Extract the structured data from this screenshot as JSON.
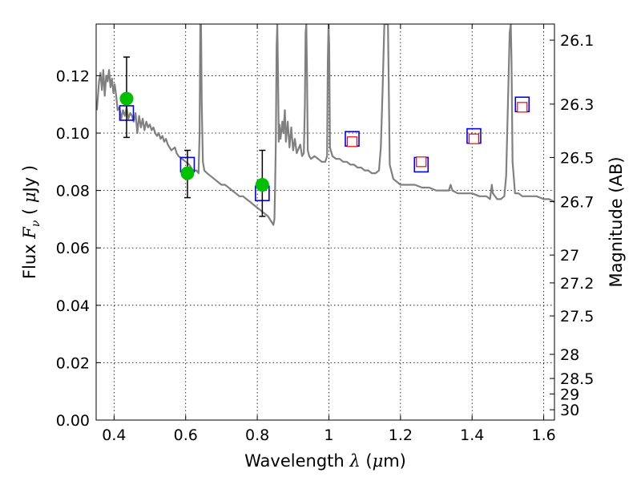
{
  "chart_data": {
    "type": "scatter",
    "title": "",
    "xlabel_prefix": "Wavelength ",
    "xlabel_symbol": "λ",
    "xlabel_unit_open": " (",
    "xlabel_unit_mu": "μ",
    "xlabel_unit_rest": "m)",
    "ylabel_prefix": "Flux  ",
    "ylabel_symbol": "F",
    "ylabel_sub": "ν",
    "ylabel_unit_open": "  ( ",
    "ylabel_unit_mu": "μ",
    "ylabel_unit_rest": "Jy )",
    "y2label": "Magnitude (AB)",
    "xlim": [
      0.35,
      1.63
    ],
    "ylim": [
      0.0,
      0.138
    ],
    "grid": true,
    "x_ticks": [
      {
        "value": 0.4,
        "label": "0.4"
      },
      {
        "value": 0.6,
        "label": "0.6"
      },
      {
        "value": 0.8,
        "label": "0.8"
      },
      {
        "value": 1.0,
        "label": "1"
      },
      {
        "value": 1.2,
        "label": "1.2"
      },
      {
        "value": 1.4,
        "label": "1.4"
      },
      {
        "value": 1.6,
        "label": "1.6"
      }
    ],
    "y_ticks": [
      {
        "value": 0.0,
        "label": "0.00"
      },
      {
        "value": 0.02,
        "label": "0.02"
      },
      {
        "value": 0.04,
        "label": "0.04"
      },
      {
        "value": 0.06,
        "label": "0.06"
      },
      {
        "value": 0.08,
        "label": "0.08"
      },
      {
        "value": 0.1,
        "label": "0.10"
      },
      {
        "value": 0.12,
        "label": "0.12"
      }
    ],
    "mag_ticks": [
      {
        "value": 0.1324,
        "label": "26.1"
      },
      {
        "value": 0.1101,
        "label": "26.3"
      },
      {
        "value": 0.0915,
        "label": "26.5"
      },
      {
        "value": 0.0761,
        "label": "26.7"
      },
      {
        "value": 0.0575,
        "label": "27"
      },
      {
        "value": 0.0478,
        "label": "27.2"
      },
      {
        "value": 0.0363,
        "label": "27.5"
      },
      {
        "value": 0.0229,
        "label": "28"
      },
      {
        "value": 0.0145,
        "label": "28.5"
      },
      {
        "value": 0.0091,
        "label": "29"
      },
      {
        "value": 0.0036,
        "label": "30"
      }
    ],
    "series": [
      {
        "name": "model-spectrum",
        "kind": "line",
        "color": "#808080",
        "points": [
          [
            0.352,
            0.108
          ],
          [
            0.358,
            0.118
          ],
          [
            0.362,
            0.121
          ],
          [
            0.366,
            0.115
          ],
          [
            0.37,
            0.122
          ],
          [
            0.374,
            0.113
          ],
          [
            0.378,
            0.12
          ],
          [
            0.382,
            0.118
          ],
          [
            0.386,
            0.122
          ],
          [
            0.39,
            0.116
          ],
          [
            0.394,
            0.119
          ],
          [
            0.398,
            0.114
          ],
          [
            0.402,
            0.117
          ],
          [
            0.406,
            0.113
          ],
          [
            0.41,
            0.108
          ],
          [
            0.415,
            0.109
          ],
          [
            0.42,
            0.105
          ],
          [
            0.425,
            0.108
          ],
          [
            0.43,
            0.106
          ],
          [
            0.435,
            0.109
          ],
          [
            0.44,
            0.105
          ],
          [
            0.445,
            0.107
          ],
          [
            0.45,
            0.106
          ],
          [
            0.455,
            0.104
          ],
          [
            0.46,
            0.107
          ],
          [
            0.465,
            0.1
          ],
          [
            0.47,
            0.106
          ],
          [
            0.475,
            0.102
          ],
          [
            0.48,
            0.105
          ],
          [
            0.485,
            0.101
          ],
          [
            0.49,
            0.104
          ],
          [
            0.495,
            0.102
          ],
          [
            0.5,
            0.103
          ],
          [
            0.505,
            0.101
          ],
          [
            0.51,
            0.102
          ],
          [
            0.515,
            0.1
          ],
          [
            0.52,
            0.099
          ],
          [
            0.525,
            0.1
          ],
          [
            0.53,
            0.098
          ],
          [
            0.535,
            0.099
          ],
          [
            0.54,
            0.097
          ],
          [
            0.545,
            0.098
          ],
          [
            0.55,
            0.096
          ],
          [
            0.56,
            0.094
          ],
          [
            0.57,
            0.095
          ],
          [
            0.575,
            0.093
          ],
          [
            0.58,
            0.092
          ],
          [
            0.59,
            0.091
          ],
          [
            0.6,
            0.09
          ],
          [
            0.61,
            0.089
          ],
          [
            0.62,
            0.087
          ],
          [
            0.63,
            0.087
          ],
          [
            0.636,
            0.086
          ],
          [
            0.639,
            0.1
          ],
          [
            0.641,
            0.138
          ],
          [
            0.643,
            0.138
          ],
          [
            0.645,
            0.11
          ],
          [
            0.648,
            0.09
          ],
          [
            0.652,
            0.087
          ],
          [
            0.66,
            0.086
          ],
          [
            0.67,
            0.085
          ],
          [
            0.68,
            0.084
          ],
          [
            0.69,
            0.083
          ],
          [
            0.7,
            0.082
          ],
          [
            0.71,
            0.082
          ],
          [
            0.72,
            0.081
          ],
          [
            0.73,
            0.08
          ],
          [
            0.74,
            0.079
          ],
          [
            0.75,
            0.078
          ],
          [
            0.76,
            0.078
          ],
          [
            0.77,
            0.077
          ],
          [
            0.78,
            0.076
          ],
          [
            0.79,
            0.075
          ],
          [
            0.8,
            0.074
          ],
          [
            0.81,
            0.073
          ],
          [
            0.82,
            0.072
          ],
          [
            0.83,
            0.071
          ],
          [
            0.84,
            0.069
          ],
          [
            0.845,
            0.068
          ],
          [
            0.848,
            0.07
          ],
          [
            0.85,
            0.082
          ],
          [
            0.852,
            0.098
          ],
          [
            0.854,
            0.13
          ],
          [
            0.856,
            0.138
          ],
          [
            0.858,
            0.12
          ],
          [
            0.86,
            0.097
          ],
          [
            0.862,
            0.103
          ],
          [
            0.865,
            0.098
          ],
          [
            0.87,
            0.104
          ],
          [
            0.873,
            0.1
          ],
          [
            0.877,
            0.108
          ],
          [
            0.88,
            0.097
          ],
          [
            0.885,
            0.104
          ],
          [
            0.89,
            0.095
          ],
          [
            0.895,
            0.102
          ],
          [
            0.9,
            0.094
          ],
          [
            0.905,
            0.098
          ],
          [
            0.91,
            0.093
          ],
          [
            0.92,
            0.096
          ],
          [
            0.925,
            0.092
          ],
          [
            0.93,
            0.093
          ],
          [
            0.933,
            0.11
          ],
          [
            0.935,
            0.135
          ],
          [
            0.937,
            0.138
          ],
          [
            0.939,
            0.12
          ],
          [
            0.941,
            0.094
          ],
          [
            0.945,
            0.092
          ],
          [
            0.95,
            0.091
          ],
          [
            0.96,
            0.092
          ],
          [
            0.97,
            0.091
          ],
          [
            0.98,
            0.09
          ],
          [
            0.99,
            0.09
          ],
          [
            0.995,
            0.092
          ],
          [
            0.997,
            0.125
          ],
          [
            0.999,
            0.138
          ],
          [
            1.001,
            0.13
          ],
          [
            1.003,
            0.095
          ],
          [
            1.01,
            0.092
          ],
          [
            1.02,
            0.091
          ],
          [
            1.03,
            0.091
          ],
          [
            1.04,
            0.09
          ],
          [
            1.05,
            0.09
          ],
          [
            1.06,
            0.089
          ],
          [
            1.07,
            0.089
          ],
          [
            1.08,
            0.088
          ],
          [
            1.09,
            0.088
          ],
          [
            1.1,
            0.087
          ],
          [
            1.11,
            0.087
          ],
          [
            1.12,
            0.086
          ],
          [
            1.13,
            0.086
          ],
          [
            1.14,
            0.087
          ],
          [
            1.145,
            0.095
          ],
          [
            1.15,
            0.115
          ],
          [
            1.155,
            0.138
          ],
          [
            1.165,
            0.138
          ],
          [
            1.168,
            0.11
          ],
          [
            1.17,
            0.089
          ],
          [
            1.18,
            0.084
          ],
          [
            1.19,
            0.083
          ],
          [
            1.2,
            0.082
          ],
          [
            1.22,
            0.082
          ],
          [
            1.24,
            0.082
          ],
          [
            1.26,
            0.081
          ],
          [
            1.28,
            0.081
          ],
          [
            1.3,
            0.08
          ],
          [
            1.32,
            0.08
          ],
          [
            1.335,
            0.08
          ],
          [
            1.34,
            0.082
          ],
          [
            1.345,
            0.08
          ],
          [
            1.36,
            0.079
          ],
          [
            1.38,
            0.079
          ],
          [
            1.4,
            0.079
          ],
          [
            1.42,
            0.078
          ],
          [
            1.44,
            0.078
          ],
          [
            1.45,
            0.077
          ],
          [
            1.455,
            0.082
          ],
          [
            1.458,
            0.079
          ],
          [
            1.47,
            0.077
          ],
          [
            1.48,
            0.077
          ],
          [
            1.49,
            0.078
          ],
          [
            1.495,
            0.085
          ],
          [
            1.5,
            0.11
          ],
          [
            1.505,
            0.135
          ],
          [
            1.508,
            0.138
          ],
          [
            1.51,
            0.125
          ],
          [
            1.513,
            0.09
          ],
          [
            1.52,
            0.079
          ],
          [
            1.53,
            0.079
          ],
          [
            1.54,
            0.078
          ],
          [
            1.56,
            0.078
          ],
          [
            1.58,
            0.078
          ],
          [
            1.6,
            0.077
          ],
          [
            1.615,
            0.077
          ],
          [
            1.63,
            0.076
          ]
        ]
      },
      {
        "name": "model-photometry",
        "kind": "square",
        "color": "#0000ff",
        "points": [
          [
            0.435,
            0.107
          ],
          [
            0.605,
            0.089
          ],
          [
            0.814,
            0.079
          ],
          [
            1.065,
            0.098
          ],
          [
            1.258,
            0.089
          ],
          [
            1.405,
            0.099
          ],
          [
            1.54,
            0.11
          ]
        ]
      },
      {
        "name": "observed-photometry",
        "kind": "square",
        "color": "#ff0000",
        "points": [
          [
            1.065,
            0.097
          ],
          [
            1.258,
            0.09
          ],
          [
            1.405,
            0.098
          ],
          [
            1.54,
            0.109
          ]
        ]
      },
      {
        "name": "observed-detections",
        "kind": "circle",
        "color": "#00c000",
        "points": [
          [
            0.435,
            0.112,
            0.0985,
            0.1265
          ],
          [
            0.605,
            0.086,
            0.0775,
            0.094
          ],
          [
            0.814,
            0.082,
            0.071,
            0.094
          ]
        ]
      }
    ]
  }
}
